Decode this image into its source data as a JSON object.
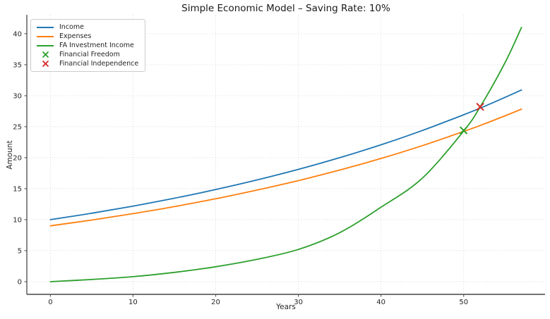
{
  "chart_data": {
    "type": "line",
    "title": "Simple Economic Model – Saving Rate: 10%",
    "xlabel": "Years",
    "ylabel": "Amount",
    "x": [
      0,
      5,
      10,
      15,
      20,
      25,
      30,
      35,
      40,
      45,
      50,
      52,
      55,
      57
    ],
    "series": [
      {
        "name": "Income",
        "color": "#1f77b4",
        "values": [
          10.0,
          11.04,
          12.19,
          13.46,
          14.86,
          16.41,
          18.11,
          20.0,
          22.08,
          24.38,
          26.92,
          27.99,
          29.72,
          30.92
        ]
      },
      {
        "name": "Expenses",
        "color": "#ff7f0e",
        "values": [
          9.0,
          9.94,
          10.97,
          12.11,
          13.37,
          14.77,
          16.3,
          18.0,
          19.87,
          21.94,
          24.23,
          25.19,
          26.75,
          27.83
        ]
      },
      {
        "name": "FA Investment Income",
        "color": "#2ca02c",
        "values": [
          0.0,
          0.35,
          0.8,
          1.5,
          2.4,
          3.6,
          5.2,
          7.9,
          12.0,
          16.7,
          24.3,
          28.2,
          35.3,
          41.0
        ]
      }
    ],
    "markers": [
      {
        "name": "Financial Freedom",
        "symbol": "x",
        "color": "#2ca02c",
        "x": 50,
        "y": 24.4
      },
      {
        "name": "Financial Independence",
        "symbol": "x",
        "color": "#d62728",
        "x": 52,
        "y": 28.2
      }
    ],
    "xlim": [
      -2.85,
      59.85
    ],
    "ylim": [
      -2.05,
      43.05
    ],
    "xticks": [
      0,
      10,
      20,
      30,
      40,
      50
    ],
    "yticks": [
      0,
      5,
      10,
      15,
      20,
      25,
      30,
      35,
      40
    ],
    "grid": true,
    "grid_style": "dotted",
    "legend_position": "upper-left",
    "styles": {
      "grid_color": "#d9d9d9",
      "spine_color": "#606060",
      "text_color": "#262626",
      "background": "#ffffff"
    }
  }
}
